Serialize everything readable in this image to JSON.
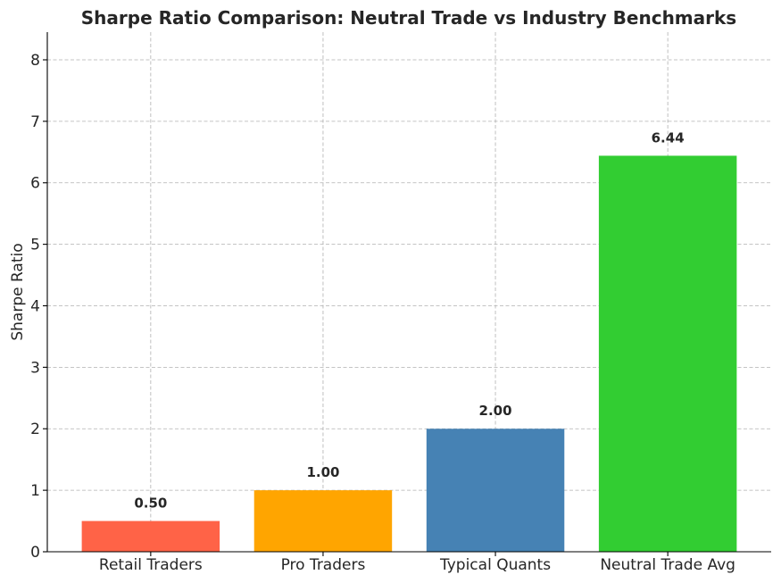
{
  "chart_data": {
    "type": "bar",
    "title": "Sharpe Ratio Comparison: Neutral Trade vs Industry Benchmarks",
    "xlabel": "",
    "ylabel": "Sharpe Ratio",
    "categories": [
      "Retail Traders",
      "Pro Traders",
      "Typical Quants",
      "Neutral Trade Avg"
    ],
    "values": [
      0.5,
      1.0,
      2.0,
      6.44
    ],
    "value_labels": [
      "0.50",
      "1.00",
      "2.00",
      "6.44"
    ],
    "colors": [
      "#ff6347",
      "#ffa500",
      "#4682b4",
      "#32cd32"
    ],
    "ylim": [
      0,
      8.45
    ],
    "yticks": [
      0,
      1,
      2,
      3,
      4,
      5,
      6,
      7,
      8
    ],
    "grid": true,
    "legend": "none"
  }
}
